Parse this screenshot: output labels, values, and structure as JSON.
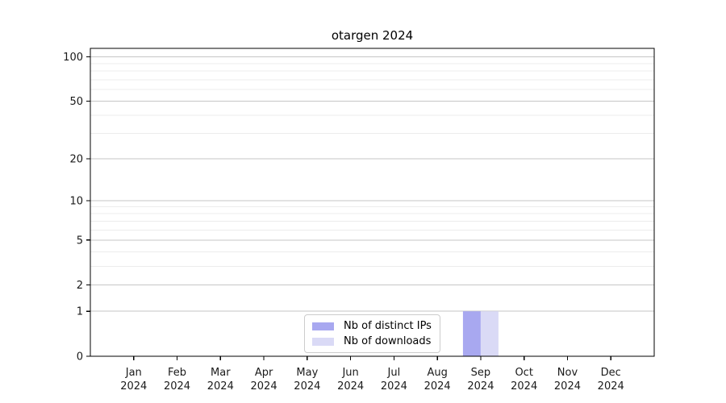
{
  "chart_data": {
    "type": "bar",
    "title": "otargen 2024",
    "categories": [
      "Jan",
      "Feb",
      "Mar",
      "Apr",
      "May",
      "Jun",
      "Jul",
      "Aug",
      "Sep",
      "Oct",
      "Nov",
      "Dec"
    ],
    "category_year": "2024",
    "series": [
      {
        "name": "Nb of distinct IPs",
        "color": "#a8a8f0",
        "values": [
          0,
          0,
          0,
          0,
          0,
          0,
          0,
          0,
          1,
          0,
          0,
          0
        ]
      },
      {
        "name": "Nb of downloads",
        "color": "#dadaf6",
        "values": [
          0,
          0,
          0,
          0,
          0,
          0,
          0,
          0,
          1,
          0,
          0,
          0
        ]
      }
    ],
    "y_axis": {
      "scale": "log1p",
      "major_ticks": [
        0,
        1,
        2,
        5,
        10,
        20,
        50,
        100
      ],
      "minor_gridlines": [
        3,
        4,
        6,
        7,
        8,
        9,
        30,
        40,
        60,
        70,
        80,
        90
      ],
      "ylim": [
        0,
        114
      ]
    },
    "legend": {
      "position": "lower center"
    },
    "grid": true,
    "colors": {
      "major_grid": "#c6c6c6",
      "minor_grid": "#ececec",
      "axis": "#000000",
      "legend_border": "#cccccc",
      "background": "#ffffff"
    }
  }
}
